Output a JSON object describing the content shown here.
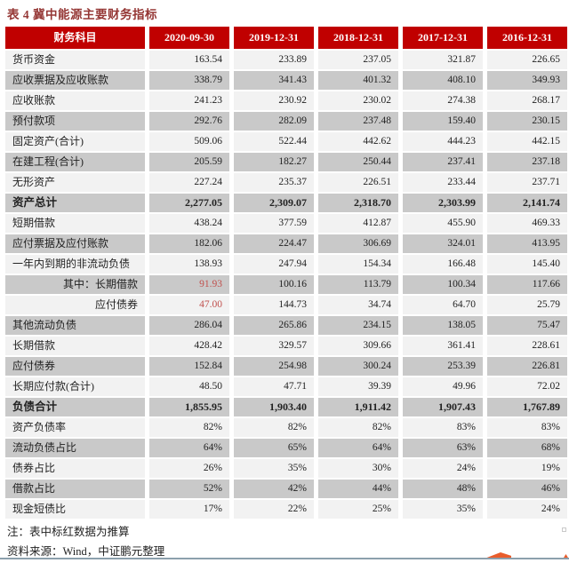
{
  "title": "表 4 冀中能源主要财务指标",
  "table": {
    "header": [
      "财务科目",
      "2020-09-30",
      "2019-12-31",
      "2018-12-31",
      "2017-12-31",
      "2016-12-31"
    ],
    "rows": [
      {
        "label": "货币资金",
        "values": [
          "163.54",
          "233.89",
          "237.05",
          "321.87",
          "226.65"
        ]
      },
      {
        "label": "应收票据及应收账款",
        "values": [
          "338.79",
          "341.43",
          "401.32",
          "408.10",
          "349.93"
        ]
      },
      {
        "label": "应收账款",
        "values": [
          "241.23",
          "230.92",
          "230.02",
          "274.38",
          "268.17"
        ]
      },
      {
        "label": "预付款项",
        "values": [
          "292.76",
          "282.09",
          "237.48",
          "159.40",
          "230.15"
        ]
      },
      {
        "label": "固定资产(合计)",
        "values": [
          "509.06",
          "522.44",
          "442.62",
          "444.23",
          "442.15"
        ]
      },
      {
        "label": "在建工程(合计)",
        "values": [
          "205.59",
          "182.27",
          "250.44",
          "237.41",
          "237.18"
        ]
      },
      {
        "label": "无形资产",
        "values": [
          "227.24",
          "235.37",
          "226.51",
          "233.44",
          "237.71"
        ]
      },
      {
        "label": "资产总计",
        "values": [
          "2,277.05",
          "2,309.07",
          "2,318.70",
          "2,303.99",
          "2,141.74"
        ],
        "bold": true
      },
      {
        "label": "短期借款",
        "values": [
          "438.24",
          "377.59",
          "412.87",
          "455.90",
          "469.33"
        ]
      },
      {
        "label": "应付票据及应付账款",
        "values": [
          "182.06",
          "224.47",
          "306.69",
          "324.01",
          "413.95"
        ]
      },
      {
        "label": "一年内到期的非流动负债",
        "values": [
          "138.93",
          "247.94",
          "154.34",
          "166.48",
          "145.40"
        ]
      },
      {
        "label": "其中：长期借款",
        "values": [
          "91.93",
          "100.16",
          "113.79",
          "100.34",
          "117.66"
        ],
        "label_align": "right",
        "red_cols": [
          0
        ]
      },
      {
        "label": "应付债券",
        "values": [
          "47.00",
          "144.73",
          "34.74",
          "64.70",
          "25.79"
        ],
        "label_align": "right",
        "red_cols": [
          0
        ]
      },
      {
        "label": "其他流动负债",
        "values": [
          "286.04",
          "265.86",
          "234.15",
          "138.05",
          "75.47"
        ]
      },
      {
        "label": "长期借款",
        "values": [
          "428.42",
          "329.57",
          "309.66",
          "361.41",
          "228.61"
        ]
      },
      {
        "label": "应付债券",
        "values": [
          "152.84",
          "254.98",
          "300.24",
          "253.39",
          "226.81"
        ]
      },
      {
        "label": "长期应付款(合计)",
        "values": [
          "48.50",
          "47.71",
          "39.39",
          "49.96",
          "72.02"
        ]
      },
      {
        "label": "负债合计",
        "values": [
          "1,855.95",
          "1,903.40",
          "1,911.42",
          "1,907.43",
          "1,767.89"
        ],
        "bold": true
      },
      {
        "label": "资产负债率",
        "values": [
          "82%",
          "82%",
          "82%",
          "83%",
          "83%"
        ]
      },
      {
        "label": "流动负债占比",
        "values": [
          "64%",
          "65%",
          "64%",
          "63%",
          "68%"
        ]
      },
      {
        "label": "债券占比",
        "values": [
          "26%",
          "35%",
          "30%",
          "24%",
          "19%"
        ]
      },
      {
        "label": "借款占比",
        "values": [
          "52%",
          "42%",
          "44%",
          "48%",
          "46%"
        ]
      },
      {
        "label": "现金短债比",
        "values": [
          "17%",
          "22%",
          "25%",
          "35%",
          "24%"
        ]
      }
    ]
  },
  "notes": [
    "注：表中标红数据为推算",
    "资料来源：Wind，中证鹏元整理"
  ],
  "colors": {
    "header_bg": "#C00000",
    "header_text": "#ffffff",
    "row_light": "#F2F2F2",
    "row_dark": "#C9C9C9",
    "title_text": "#953735",
    "flagged_value_text": "#C0504D",
    "bottom_rule": "#8CA0AD",
    "swoosh_accent": "#E95D2C"
  }
}
